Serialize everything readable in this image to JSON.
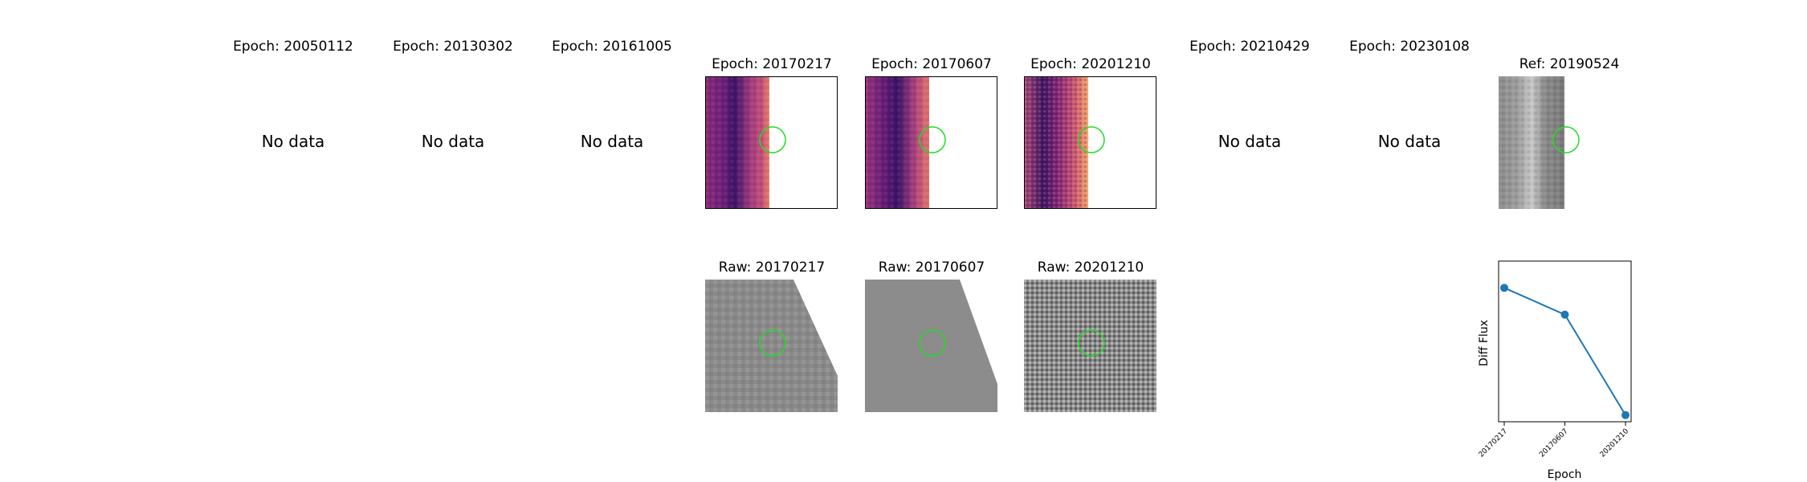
{
  "epochs": [
    {
      "title": "Epoch: 20050112",
      "status": "No data"
    },
    {
      "title": "Epoch: 20130302",
      "status": "No data"
    },
    {
      "title": "Epoch: 20161005",
      "status": "No data"
    },
    {
      "title": "Epoch: 20170217",
      "status": ""
    },
    {
      "title": "Epoch: 20170607",
      "status": ""
    },
    {
      "title": "Epoch: 20201210",
      "status": ""
    },
    {
      "title": "Epoch: 20210429",
      "status": "No data"
    },
    {
      "title": "Epoch: 20230108",
      "status": "No data"
    }
  ],
  "reference": {
    "title": "Ref: 20190524"
  },
  "raw": [
    {
      "title": "Raw: 20170217"
    },
    {
      "title": "Raw: 20170607"
    },
    {
      "title": "Raw: 20201210"
    }
  ],
  "colors": {
    "aperture": "#22dd22",
    "series": "#1f77b4",
    "frame": "#000000"
  },
  "chart_data": {
    "type": "line",
    "categories": [
      "20170217",
      "20170607",
      "20201210"
    ],
    "values": [
      0.9,
      0.7,
      -0.05
    ],
    "xlabel": "Epoch",
    "ylabel": "Diff Flux",
    "ylim": [
      -0.1,
      1.1
    ],
    "grid": false,
    "tick_labels_shown": [
      "20170217",
      "20170607",
      "20201210"
    ]
  }
}
